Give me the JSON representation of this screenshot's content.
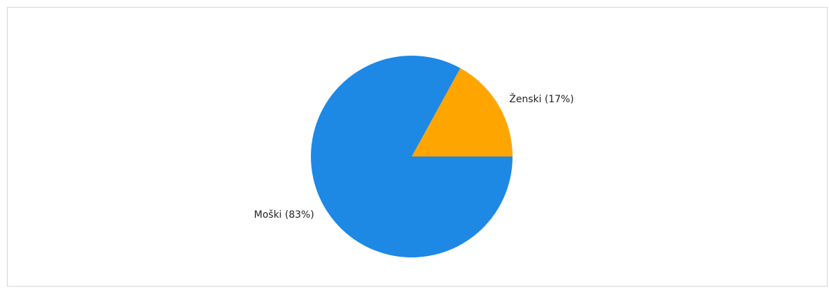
{
  "chart_data": {
    "type": "pie",
    "title": "",
    "slices": [
      {
        "label": "Ženski",
        "percent_label": "(17%)",
        "value": 17,
        "color": "#FFA500"
      },
      {
        "label": "Moški",
        "percent_label": "(83%)",
        "value": 83,
        "color": "#1E88E5"
      }
    ],
    "legend": "none",
    "labels_outside": true
  }
}
